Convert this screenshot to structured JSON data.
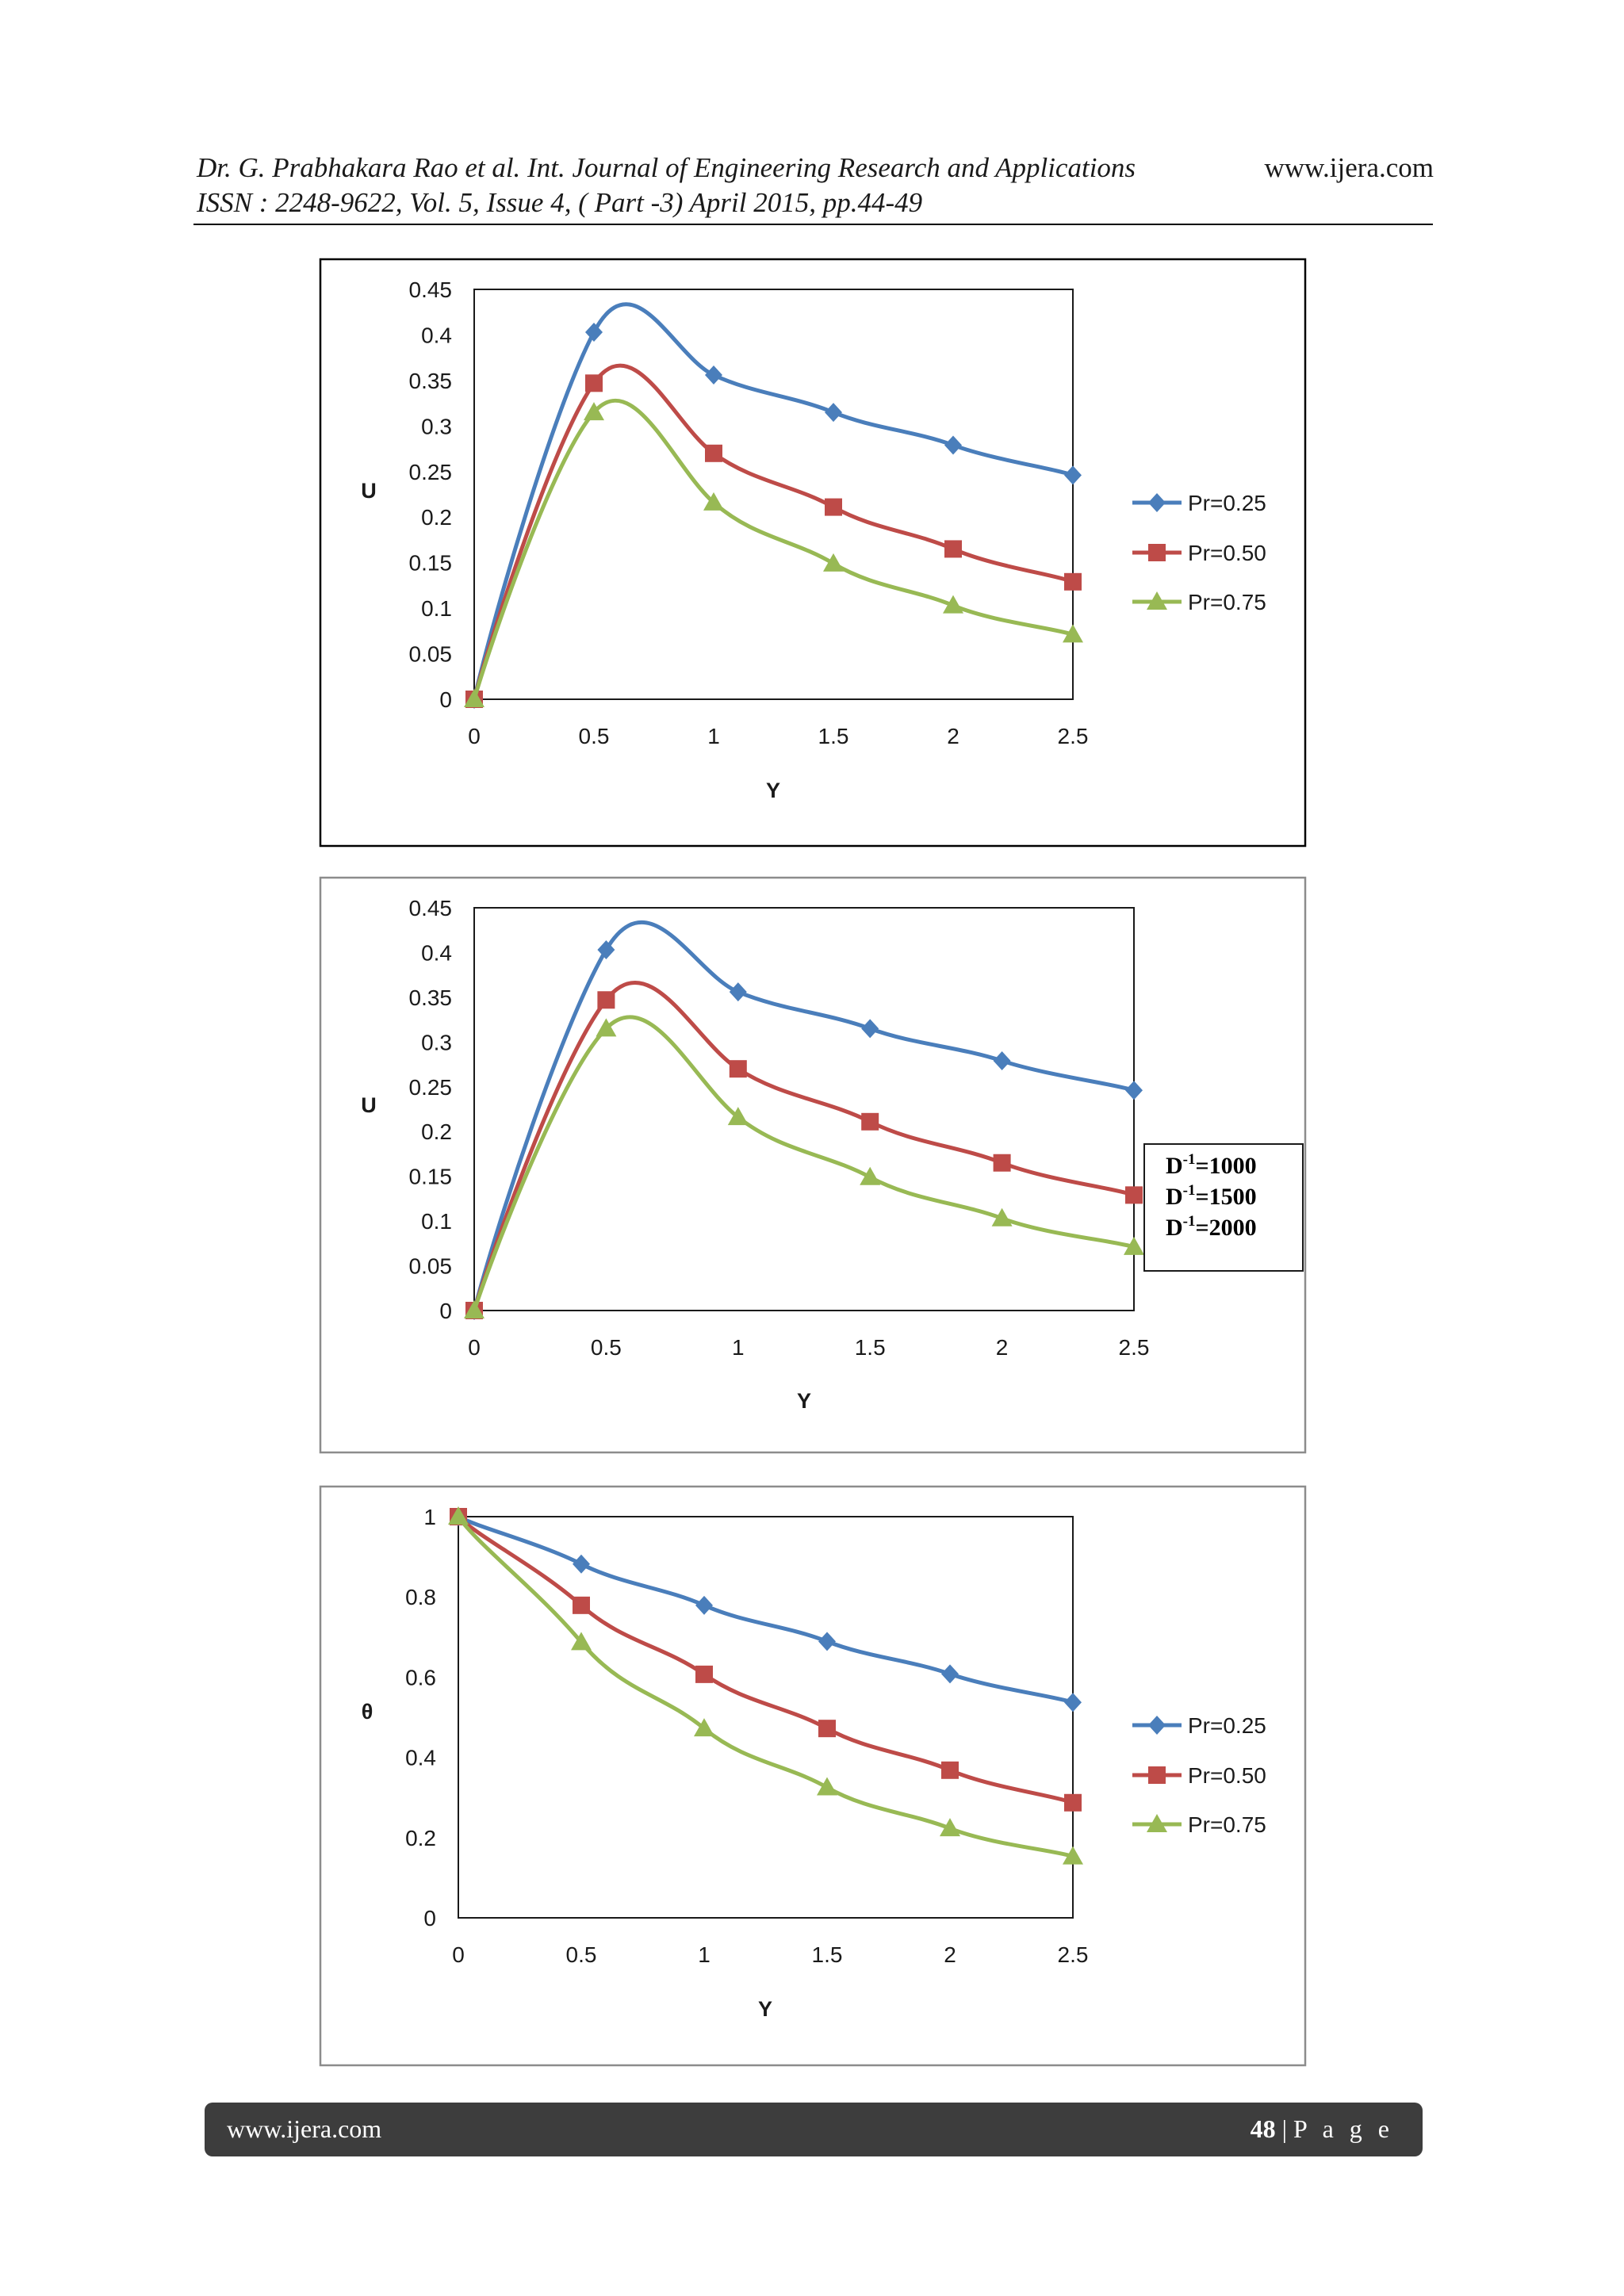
{
  "header": {
    "line1": "Dr. G. Prabhakara Rao et al. Int. Journal of Engineering Research and Applications",
    "site": "www.ijera.com",
    "line2": "ISSN : 2248-9622, Vol. 5, Issue 4, ( Part -3) April 2015, pp.44-49"
  },
  "footer": {
    "site": "www.ijera.com",
    "page_number": "48",
    "page_sep": " | ",
    "page_word": "P a g e"
  },
  "colors": {
    "blue": "#4a7ebb",
    "red": "#be4b48",
    "green": "#98b954"
  },
  "chart_data": [
    {
      "type": "line",
      "xlabel": "Y",
      "ylabel": "U",
      "x": [
        0,
        0.5,
        1,
        1.5,
        2,
        2.5
      ],
      "xticks": [
        "0",
        "0.5",
        "1",
        "1.5",
        "2",
        "2.5"
      ],
      "yticks": [
        "0",
        "0.05",
        "0.1",
        "0.15",
        "0.2",
        "0.25",
        "0.3",
        "0.35",
        "0.4",
        "0.45"
      ],
      "xlim": [
        0,
        2.5
      ],
      "ylim": [
        0,
        0.45
      ],
      "legend_position": "right",
      "series": [
        {
          "name": "Pr=0.25",
          "color": "#4a7ebb",
          "marker": "diamond",
          "values": [
            0,
            0.403,
            0.356,
            0.315,
            0.279,
            0.246
          ]
        },
        {
          "name": "Pr=0.50",
          "color": "#be4b48",
          "marker": "square",
          "values": [
            0,
            0.347,
            0.27,
            0.211,
            0.165,
            0.129
          ]
        },
        {
          "name": "Pr=0.75",
          "color": "#98b954",
          "marker": "triangle",
          "values": [
            0,
            0.315,
            0.216,
            0.149,
            0.103,
            0.071
          ]
        }
      ]
    },
    {
      "type": "line",
      "xlabel": "Y",
      "ylabel": "U",
      "x": [
        0,
        0.5,
        1,
        1.5,
        2,
        2.5
      ],
      "xticks": [
        "0",
        "0.5",
        "1",
        "1.5",
        "2",
        "2.5"
      ],
      "yticks": [
        "0",
        "0.05",
        "0.1",
        "0.15",
        "0.2",
        "0.25",
        "0.3",
        "0.35",
        "0.4",
        "0.45"
      ],
      "xlim": [
        0,
        2.5
      ],
      "ylim": [
        0,
        0.45
      ],
      "legend_position": "right",
      "series": [
        {
          "name": "D-1=1000",
          "label_base": "D",
          "label_sup": "-1",
          "label_rest": "=1000",
          "color": "#4a7ebb",
          "marker": "diamond",
          "values": [
            0,
            0.403,
            0.356,
            0.315,
            0.279,
            0.246
          ]
        },
        {
          "name": "D-1=1500",
          "label_base": "D",
          "label_sup": "-1",
          "label_rest": "=1500",
          "color": "#be4b48",
          "marker": "square",
          "values": [
            0,
            0.347,
            0.27,
            0.211,
            0.165,
            0.129
          ]
        },
        {
          "name": "D-1=2000",
          "label_base": "D",
          "label_sup": "-1",
          "label_rest": "=2000",
          "color": "#98b954",
          "marker": "triangle",
          "values": [
            0,
            0.315,
            0.216,
            0.149,
            0.103,
            0.071
          ]
        }
      ]
    },
    {
      "type": "line",
      "xlabel": "Y",
      "ylabel": "θ",
      "x": [
        0,
        0.5,
        1,
        1.5,
        2,
        2.5
      ],
      "xticks": [
        "0",
        "0.5",
        "1",
        "1.5",
        "2",
        "2.5"
      ],
      "yticks": [
        "0",
        "0.2",
        "0.4",
        "0.6",
        "0.8",
        "1"
      ],
      "xlim": [
        0,
        2.5
      ],
      "ylim": [
        0,
        1
      ],
      "legend_position": "right",
      "series": [
        {
          "name": "Pr=0.25",
          "color": "#4a7ebb",
          "marker": "diamond",
          "values": [
            1,
            0.882,
            0.779,
            0.689,
            0.608,
            0.537
          ]
        },
        {
          "name": "Pr=0.50",
          "color": "#be4b48",
          "marker": "square",
          "values": [
            1,
            0.779,
            0.607,
            0.472,
            0.368,
            0.287
          ]
        },
        {
          "name": "Pr=0.75",
          "color": "#98b954",
          "marker": "triangle",
          "values": [
            1,
            0.687,
            0.472,
            0.325,
            0.223,
            0.153
          ]
        }
      ]
    }
  ]
}
